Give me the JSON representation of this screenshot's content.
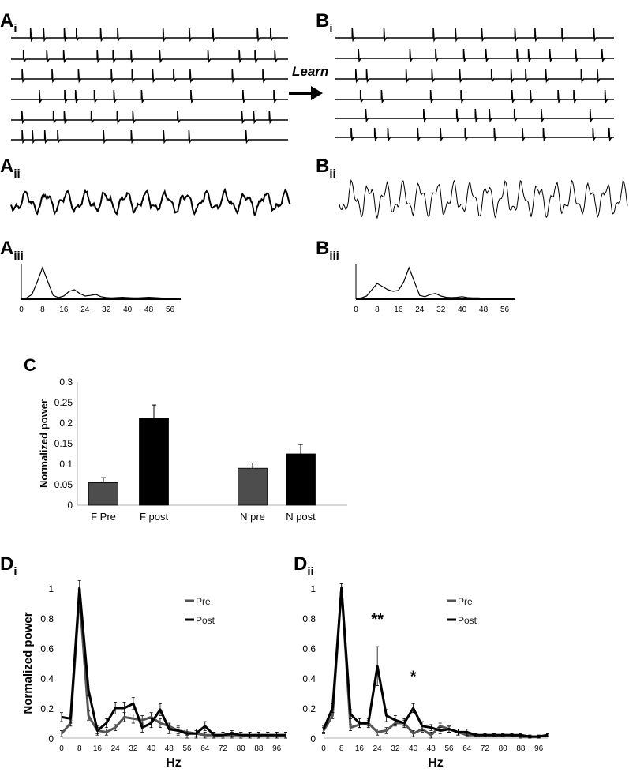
{
  "panel_labels": {
    "a_i": {
      "main": "A",
      "sub": "i"
    },
    "b_i": {
      "main": "B",
      "sub": "i"
    },
    "a_ii": {
      "main": "A",
      "sub": "ii"
    },
    "b_ii": {
      "main": "B",
      "sub": "ii"
    },
    "a_iii": {
      "main": "A",
      "sub": "iii"
    },
    "b_iii": {
      "main": "B",
      "sub": "iii"
    },
    "c": "C",
    "d_i": {
      "main": "D",
      "sub": "i"
    },
    "d_ii": {
      "main": "D",
      "sub": "ii"
    }
  },
  "learn_label": "Learn",
  "colors": {
    "pre": "#555555",
    "post": "#000000",
    "pre_bar": "#4d4d4d",
    "post_bar": "#000000"
  },
  "chart_data": [
    {
      "id": "Aiii",
      "type": "line",
      "title": "",
      "xlabel": "",
      "ylabel": "",
      "xlim": [
        0,
        60
      ],
      "xticks": [
        "0",
        "8",
        "16",
        "24",
        "32",
        "40",
        "48",
        "56"
      ],
      "series": [
        {
          "x": [
            0,
            2,
            4,
            6,
            8,
            10,
            12,
            14,
            16,
            18,
            20,
            22,
            24,
            26,
            28,
            30,
            32,
            34,
            36,
            38,
            40,
            42,
            44,
            46,
            48,
            50,
            52,
            54,
            56,
            58,
            60
          ],
          "values": [
            0.02,
            0.04,
            0.15,
            0.55,
            1.0,
            0.55,
            0.12,
            0.05,
            0.1,
            0.25,
            0.3,
            0.18,
            0.1,
            0.12,
            0.15,
            0.08,
            0.05,
            0.04,
            0.05,
            0.06,
            0.05,
            0.04,
            0.04,
            0.05,
            0.06,
            0.05,
            0.04,
            0.03,
            0.03,
            0.03,
            0.03
          ]
        }
      ]
    },
    {
      "id": "Biii",
      "type": "line",
      "title": "",
      "xlabel": "",
      "ylabel": "",
      "xlim": [
        0,
        60
      ],
      "xticks": [
        "0",
        "8",
        "16",
        "24",
        "32",
        "40",
        "48",
        "56"
      ],
      "series": [
        {
          "x": [
            0,
            2,
            4,
            6,
            8,
            10,
            12,
            14,
            16,
            18,
            20,
            22,
            24,
            26,
            28,
            30,
            32,
            34,
            36,
            38,
            40,
            42,
            44,
            46,
            48,
            50,
            52,
            54,
            56,
            58,
            60
          ],
          "values": [
            0.02,
            0.04,
            0.1,
            0.3,
            0.5,
            0.4,
            0.3,
            0.25,
            0.28,
            0.55,
            1.0,
            0.55,
            0.12,
            0.08,
            0.15,
            0.18,
            0.1,
            0.06,
            0.05,
            0.06,
            0.08,
            0.05,
            0.04,
            0.04,
            0.03,
            0.03,
            0.03,
            0.03,
            0.03,
            0.03,
            0.03
          ]
        }
      ]
    },
    {
      "id": "C",
      "type": "bar",
      "title": "",
      "xlabel": "",
      "ylabel": "Normalized power",
      "ylim": [
        0,
        0.3
      ],
      "yticks": [
        "0",
        "0.05",
        "0.1",
        "0.15",
        "0.2",
        "0.25",
        "0.3"
      ],
      "categories": [
        "F Pre",
        "F post",
        "N pre",
        "N post"
      ],
      "values": [
        0.055,
        0.212,
        0.09,
        0.125
      ],
      "errors": [
        0.012,
        0.032,
        0.013,
        0.023
      ]
    },
    {
      "id": "Di",
      "type": "line",
      "title": "",
      "xlabel": "Hz",
      "ylabel": "Normalized power",
      "ylim": [
        0,
        1
      ],
      "xlim": [
        0,
        100
      ],
      "yticks": [
        "0",
        "0.2",
        "0.4",
        "0.6",
        "0.8",
        "1"
      ],
      "xticks": [
        "0",
        "8",
        "16",
        "24",
        "32",
        "40",
        "48",
        "56",
        "64",
        "72",
        "80",
        "88",
        "96"
      ],
      "x": [
        0,
        4,
        8,
        12,
        16,
        20,
        24,
        28,
        32,
        36,
        40,
        44,
        48,
        52,
        56,
        60,
        64,
        68,
        72,
        76,
        80,
        84,
        88,
        92,
        96,
        100
      ],
      "series": [
        {
          "name": "Pre",
          "values": [
            0.03,
            0.1,
            0.95,
            0.15,
            0.05,
            0.04,
            0.07,
            0.14,
            0.13,
            0.12,
            0.14,
            0.1,
            0.08,
            0.05,
            0.04,
            0.03,
            0.02,
            0.02,
            0.02,
            0.02,
            0.02,
            0.02,
            0.02,
            0.02,
            0.02,
            0.02
          ],
          "errors": [
            0.02,
            0.02,
            0.04,
            0.03,
            0.02,
            0.02,
            0.02,
            0.03,
            0.03,
            0.03,
            0.03,
            0.03,
            0.02,
            0.02,
            0.02,
            0.02,
            0.02,
            0.02,
            0.02,
            0.02,
            0.02,
            0.02,
            0.02,
            0.02,
            0.02,
            0.02
          ]
        },
        {
          "name": "Post",
          "values": [
            0.14,
            0.13,
            1.0,
            0.32,
            0.05,
            0.1,
            0.2,
            0.2,
            0.23,
            0.07,
            0.1,
            0.19,
            0.06,
            0.05,
            0.03,
            0.03,
            0.08,
            0.02,
            0.02,
            0.03,
            0.02,
            0.02,
            0.02,
            0.02,
            0.02,
            0.02
          ],
          "errors": [
            0.03,
            0.03,
            0.05,
            0.04,
            0.03,
            0.03,
            0.04,
            0.04,
            0.04,
            0.03,
            0.03,
            0.04,
            0.03,
            0.03,
            0.03,
            0.03,
            0.03,
            0.02,
            0.02,
            0.02,
            0.02,
            0.02,
            0.02,
            0.02,
            0.02,
            0.02
          ]
        }
      ],
      "legend": "right"
    },
    {
      "id": "Dii",
      "type": "line",
      "title": "",
      "xlabel": "Hz",
      "ylabel": "",
      "ylim": [
        0,
        1
      ],
      "xlim": [
        0,
        100
      ],
      "yticks": [
        "0",
        "0.2",
        "0.4",
        "0.6",
        "0.8",
        "1"
      ],
      "xticks": [
        "0",
        "8",
        "16",
        "24",
        "32",
        "40",
        "48",
        "56",
        "64",
        "72",
        "80",
        "88",
        "96"
      ],
      "x": [
        0,
        4,
        8,
        12,
        16,
        20,
        24,
        28,
        32,
        36,
        40,
        44,
        48,
        52,
        56,
        60,
        64,
        68,
        72,
        76,
        80,
        84,
        88,
        92,
        96,
        100
      ],
      "series": [
        {
          "name": "Pre",
          "values": [
            0.05,
            0.15,
            1.0,
            0.07,
            0.09,
            0.1,
            0.04,
            0.05,
            0.1,
            0.1,
            0.03,
            0.06,
            0.02,
            0.08,
            0.06,
            0.04,
            0.02,
            0.02,
            0.02,
            0.02,
            0.02,
            0.02,
            0.01,
            0.01,
            0.01,
            0.02
          ],
          "errors": [
            0.02,
            0.02,
            0.03,
            0.02,
            0.02,
            0.02,
            0.02,
            0.02,
            0.02,
            0.02,
            0.02,
            0.02,
            0.02,
            0.02,
            0.02,
            0.02,
            0.01,
            0.01,
            0.01,
            0.01,
            0.01,
            0.01,
            0.01,
            0.01,
            0.01,
            0.01
          ]
        },
        {
          "name": "Post",
          "values": [
            0.06,
            0.2,
            1.0,
            0.16,
            0.1,
            0.1,
            0.48,
            0.15,
            0.12,
            0.1,
            0.2,
            0.08,
            0.07,
            0.05,
            0.06,
            0.04,
            0.04,
            0.02,
            0.02,
            0.02,
            0.02,
            0.02,
            0.02,
            0.01,
            0.01,
            0.02
          ],
          "errors": [
            0.02,
            0.03,
            0.03,
            0.03,
            0.03,
            0.03,
            0.13,
            0.04,
            0.03,
            0.03,
            0.03,
            0.03,
            0.02,
            0.02,
            0.02,
            0.02,
            0.02,
            0.01,
            0.01,
            0.01,
            0.01,
            0.01,
            0.01,
            0.01,
            0.01,
            0.01
          ]
        }
      ],
      "annotations": [
        {
          "text": "**",
          "x": 24
        },
        {
          "text": "*",
          "x": 40
        }
      ],
      "legend": "right"
    }
  ]
}
